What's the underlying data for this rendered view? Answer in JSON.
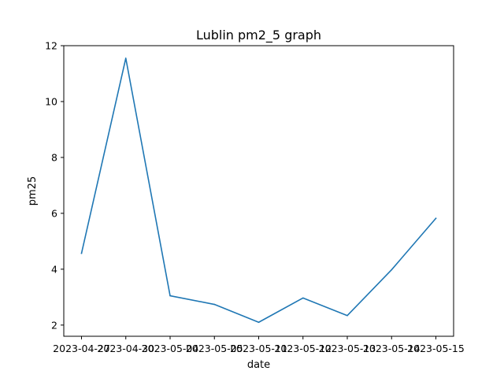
{
  "chart_data": {
    "type": "line",
    "title": "Lublin pm2_5 graph",
    "xlabel": "date",
    "ylabel": "pm25",
    "categories": [
      "2023-04-27",
      "2023-04-30",
      "2023-05-04",
      "2023-05-05",
      "2023-05-11",
      "2023-05-12",
      "2023-05-13",
      "2023-05-14",
      "2023-05-15"
    ],
    "series": [
      {
        "color": "#1f77b4",
        "values": [
          4.57,
          11.55,
          3.05,
          2.74,
          2.1,
          2.97,
          2.34,
          3.98,
          5.82
        ]
      }
    ],
    "yticks": [
      "2",
      "4",
      "6",
      "8",
      "10",
      "12"
    ],
    "ylim": [
      1.6,
      12.0
    ],
    "grid": false,
    "legend": "none"
  }
}
